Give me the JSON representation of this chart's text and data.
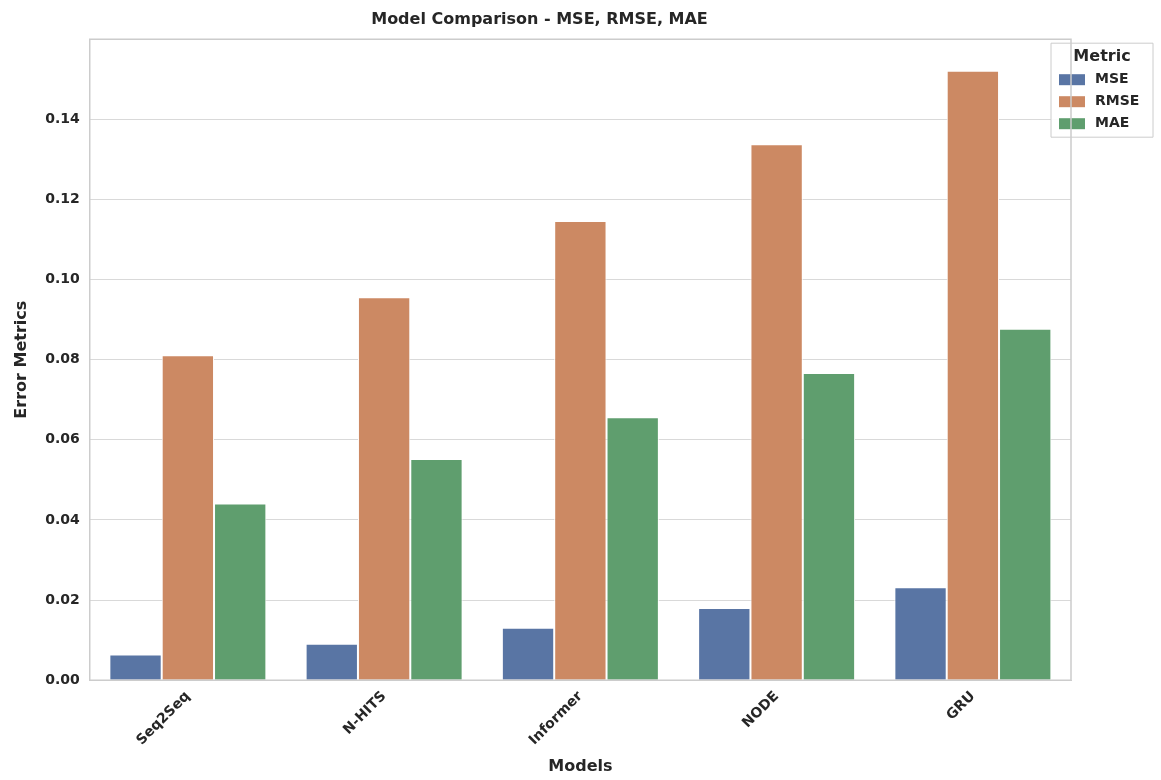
{
  "chart_data": {
    "type": "bar",
    "title": "Model Comparison - MSE, RMSE, MAE",
    "xlabel": "Models",
    "ylabel": "Error Metrics",
    "legend_title": "Metric",
    "legend": "top right",
    "grid": "y",
    "categories": [
      "Seq2Seq",
      "N-HITS",
      "Informer",
      "NODE",
      "GRU"
    ],
    "series": [
      {
        "name": "MSE",
        "color": "#5975a4",
        "values": [
          0.0064,
          0.0091,
          0.0131,
          0.018,
          0.0232
        ]
      },
      {
        "name": "RMSE",
        "color": "#cc8963",
        "values": [
          0.0811,
          0.0956,
          0.1146,
          0.1338,
          0.1521
        ]
      },
      {
        "name": "MAE",
        "color": "#5f9e6e",
        "values": [
          0.0441,
          0.0552,
          0.0656,
          0.0767,
          0.0877
        ]
      }
    ],
    "ylim": [
      0,
      0.16
    ],
    "yticks": [
      {
        "value": 0,
        "label": "0.00"
      },
      {
        "value": 0.02,
        "label": "0.02"
      },
      {
        "value": 0.04,
        "label": "0.04"
      },
      {
        "value": 0.06,
        "label": "0.06"
      },
      {
        "value": 0.08,
        "label": "0.08"
      },
      {
        "value": 0.1,
        "label": "0.10"
      },
      {
        "value": 0.12,
        "label": "0.12"
      },
      {
        "value": 0.14,
        "label": "0.14"
      }
    ]
  }
}
